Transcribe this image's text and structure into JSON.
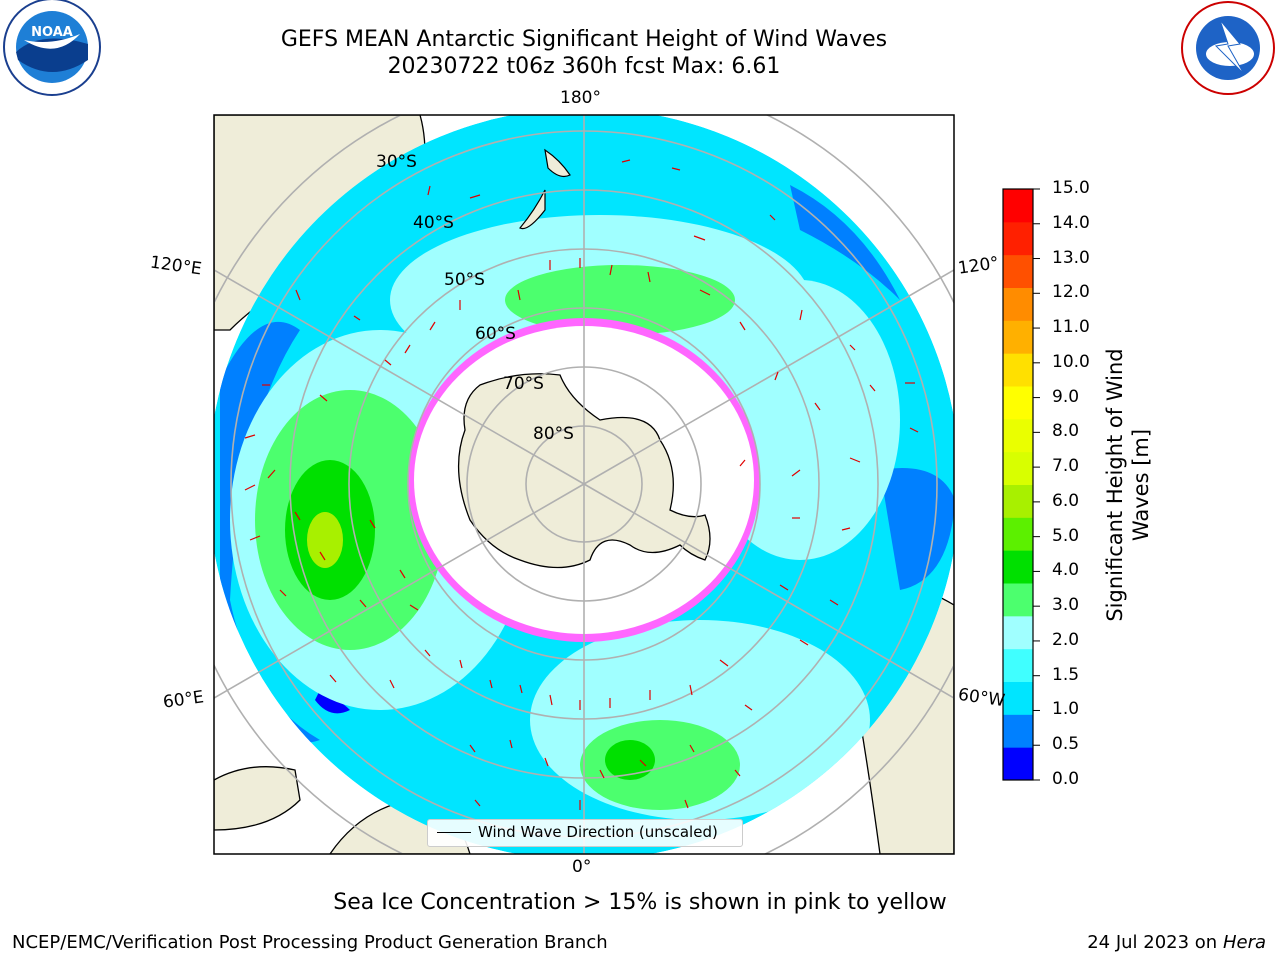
{
  "title_line1": "GEFS MEAN Antarctic Significant Height of Wind Waves",
  "title_line2": "20230722 t06z 360h fcst   Max: 6.61",
  "longitude_labels": {
    "top": "180°",
    "bottom": "0°",
    "upper_left": "120°E",
    "upper_right": "120°",
    "lower_left": "60°E",
    "lower_right": "60°W"
  },
  "latitude_labels": [
    "30°S",
    "40°S",
    "50°S",
    "60°S",
    "70°S",
    "80°S"
  ],
  "legend": {
    "label": "Wind Wave Direction (unscaled)"
  },
  "colorbar": {
    "label": "Significant Height of Wind Waves [m]",
    "ticks": [
      "15.0",
      "14.0",
      "13.0",
      "12.0",
      "11.0",
      "10.0",
      "9.0",
      "8.0",
      "7.0",
      "6.0",
      "5.0",
      "4.0",
      "3.0",
      "2.0",
      "1.5",
      "1.0",
      "0.5",
      "0.0"
    ],
    "colors": [
      "#0000ff",
      "#0080ff",
      "#00e5ff",
      "#40ffff",
      "#a0ffff",
      "#4cff6e",
      "#00e000",
      "#5cf000",
      "#a8f000",
      "#d8ff00",
      "#eaff00",
      "#ffff00",
      "#ffe000",
      "#ffb000",
      "#ff8c00",
      "#ff5000",
      "#ff2000",
      "#ff0000"
    ]
  },
  "footnote": "Sea Ice Concentration > 15% is shown in pink to yellow",
  "footer": {
    "left": "NCEP/EMC/Verification Post Processing Product Generation Branch",
    "right_date": "24 Jul 2023 on ",
    "right_host": "Hera"
  },
  "logos": {
    "left": "NOAA",
    "right": "NATIONAL WEATHER SERVICE"
  }
}
